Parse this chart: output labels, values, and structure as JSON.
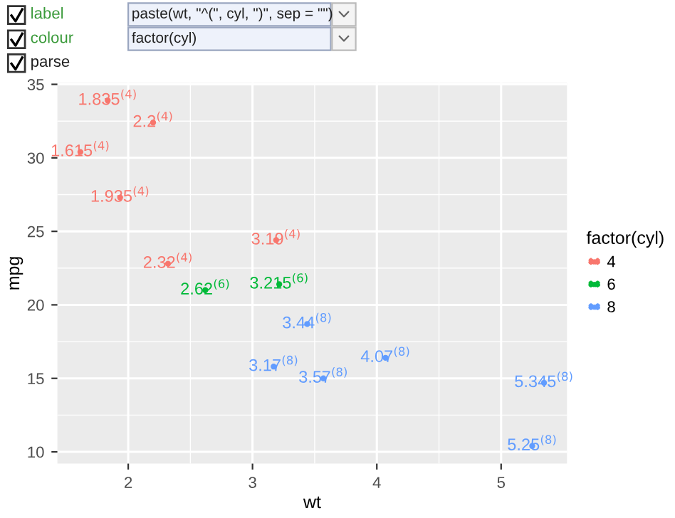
{
  "chart_data": {
    "type": "scatter",
    "xlabel": "wt",
    "ylabel": "mpg",
    "legend_title": "factor(cyl)",
    "annotations": [
      "label",
      "colour",
      "parse",
      "paste(wt, \"^(\", cyl, \")\", sep = \"\")",
      "factor(cyl)"
    ],
    "series": [
      {
        "name": "4",
        "color": "#f8766d",
        "x": [
          1.835,
          2.2,
          1.615,
          1.935,
          2.32,
          3.19
        ],
        "values": [
          33.9,
          32.4,
          30.4,
          27.3,
          22.8,
          24.4
        ],
        "value_labels": [
          "1.835$^{(4)}$",
          "2.2$^{(4)}$",
          "1.615$^{(4)}$",
          "1.935$^{(4)}$",
          "2.32$^{(4)}$",
          "3.19$^{(4)}$"
        ]
      },
      {
        "name": "6",
        "color": "#00ba38",
        "x": [
          2.62,
          3.215
        ],
        "values": [
          21.0,
          21.4
        ],
        "value_labels": [
          "2.62$^{(6)}$",
          "3.215$^{(6)}$"
        ]
      },
      {
        "name": "8",
        "color": "#619cff",
        "x": [
          3.44,
          3.17,
          3.57,
          4.07,
          5.345,
          5.25
        ],
        "values": [
          18.7,
          15.8,
          15.0,
          16.4,
          14.7,
          10.4
        ],
        "value_labels": [
          "3.44$^{(8)}$",
          "3.17$^{(8)}$",
          "3.57$^{(8)}$",
          "4.07$^{(8)}$",
          "5.345$^{(8)}$",
          "5.25$^{(8)}$"
        ]
      }
    ],
    "xlim": [
      1.43,
      5.53
    ],
    "ylim": [
      9.2,
      35.1
    ],
    "xticks": [
      2,
      3,
      4,
      5
    ],
    "yticks": [
      10,
      15,
      20,
      25,
      30,
      35
    ],
    "grid": true,
    "legend": "right",
    "marker": "circle"
  }
}
